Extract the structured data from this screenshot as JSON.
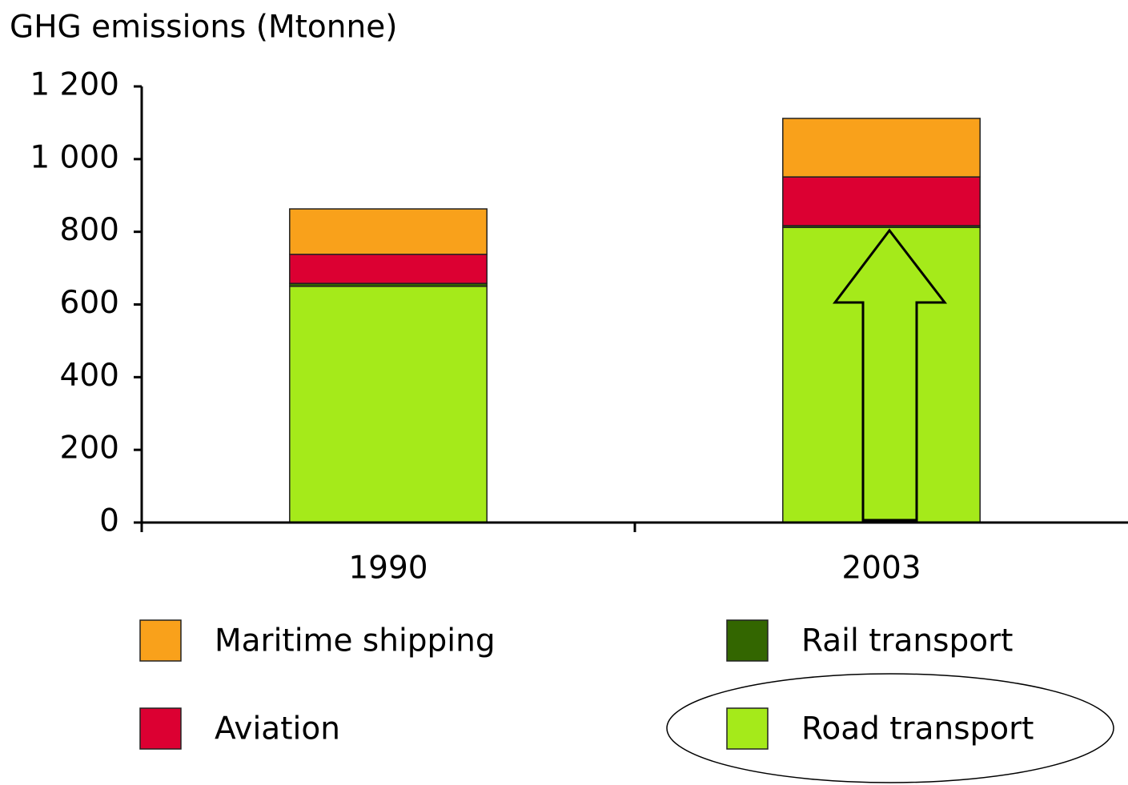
{
  "chart_data": {
    "type": "stacked_bar",
    "title": "GHG emissions (Mtonne)",
    "categories": [
      "1990",
      "2003"
    ],
    "series": [
      {
        "name": "Maritime shipping",
        "color": "#f9a11b",
        "values": [
          125,
          161
        ]
      },
      {
        "name": "Rail transport",
        "color": "#336600",
        "values": [
          8,
          5
        ]
      },
      {
        "name": "Aviation",
        "color": "#dc0032",
        "values": [
          80,
          134
        ]
      },
      {
        "name": "Road transport",
        "color": "#a5ea1a",
        "values": [
          650,
          812
        ]
      }
    ],
    "ylim": [
      0,
      1200
    ],
    "yticks": [
      0,
      200,
      400,
      600,
      800,
      {
        "value": 1000,
        "label": "1 000"
      },
      {
        "value": 1200,
        "label": "1 200"
      }
    ]
  }
}
